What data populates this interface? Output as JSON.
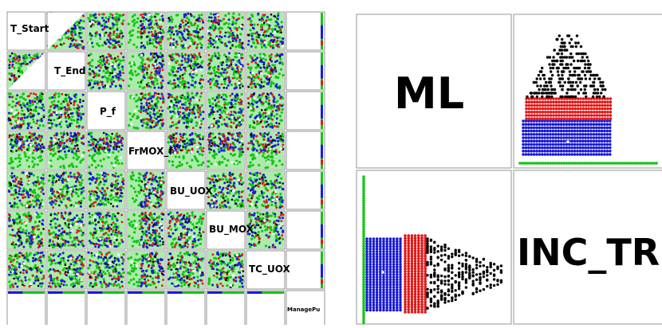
{
  "colors": {
    "green": "#13c513",
    "blue": "#1a1ad6",
    "red": "#e01818",
    "black": "#050505",
    "white": "#ffffff",
    "panel_border": "#7a7a7a"
  },
  "left_matrix": {
    "variables": [
      "T_Start",
      "T_End",
      "P_f",
      "FrMOX_f",
      "BU_UOX",
      "BU_MOX",
      "TC_UOX",
      "ManagePu"
    ]
  },
  "right_matrix": {
    "variables": [
      "ML",
      "INC_TRU"
    ]
  },
  "chart_data": [
    {
      "type": "scatter",
      "variables": [
        "T_Start",
        "T_End",
        "P_f",
        "FrMOX_f",
        "BU_UOX",
        "BU_MOX",
        "TC_UOX",
        "ManagePu"
      ],
      "series": [
        {
          "color": "green"
        },
        {
          "color": "blue"
        },
        {
          "color": "red"
        },
        {
          "color": "black"
        }
      ],
      "grid": false,
      "legend": "none"
    },
    {
      "type": "scatter",
      "variables": [
        "ML",
        "INC_TRU"
      ],
      "series": [
        {
          "color": "green"
        },
        {
          "color": "blue"
        },
        {
          "color": "red"
        },
        {
          "color": "black"
        }
      ],
      "grid": false,
      "legend": "none"
    }
  ]
}
